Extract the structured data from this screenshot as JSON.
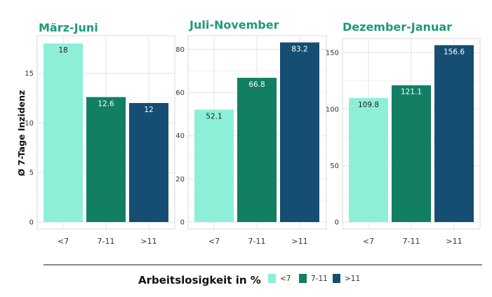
{
  "chart_data": {
    "type": "bar",
    "ylabel": "Ø 7-Tage Inzidenz",
    "legend": {
      "title": "Arbeitslosigkeit in %",
      "placement": "bottom",
      "entries": [
        {
          "label": "<7",
          "color": "#8EEFD9"
        },
        {
          "label": "7-11",
          "color": "#127E63"
        },
        {
          "label": ">11",
          "color": "#154E72"
        }
      ]
    },
    "grid": true,
    "title_color": "#1D9A78",
    "categories": [
      "<7",
      "7-11",
      ">11"
    ],
    "panels": [
      {
        "title": "März-Juni",
        "values": [
          18,
          12.6,
          12
        ],
        "value_labels": [
          "18",
          "12.6",
          "12"
        ],
        "ylim": [
          0,
          18.5
        ],
        "yticks": [
          0,
          5,
          10,
          15
        ]
      },
      {
        "title": "Juli-November",
        "values": [
          52.1,
          66.8,
          83.2
        ],
        "value_labels": [
          "52.1",
          "66.8",
          "83.2"
        ],
        "ylim": [
          0,
          85
        ],
        "yticks": [
          0,
          20,
          40,
          60,
          80
        ]
      },
      {
        "title": "Dezember-Januar",
        "values": [
          109.8,
          121.1,
          156.6
        ],
        "value_labels": [
          "109.8",
          "121.1",
          "156.6"
        ],
        "ylim": [
          0,
          160
        ],
        "yticks": [
          0,
          50,
          100,
          150
        ]
      }
    ]
  }
}
